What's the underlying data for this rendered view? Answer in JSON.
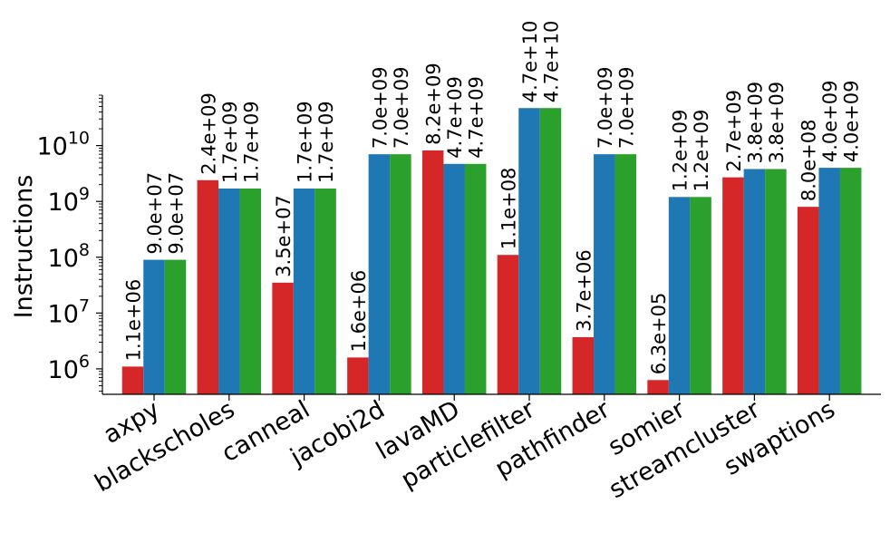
{
  "chart_data": {
    "type": "bar",
    "title": "",
    "xlabel": "",
    "ylabel": "Instructions",
    "yscale": "log",
    "ylim": [
      350000,
      80000000000
    ],
    "yticks": [
      {
        "value": 1000000,
        "base": "10",
        "exp": "6"
      },
      {
        "value": 10000000,
        "base": "10",
        "exp": "7"
      },
      {
        "value": 100000000,
        "base": "10",
        "exp": "8"
      },
      {
        "value": 1000000000,
        "base": "10",
        "exp": "9"
      },
      {
        "value": 10000000000,
        "base": "10",
        "exp": "10"
      }
    ],
    "grid": false,
    "legend": "none",
    "categories": [
      "axpy",
      "blackscholes",
      "canneal",
      "jacobi2d",
      "lavaMD",
      "particlefilter",
      "pathfinder",
      "somier",
      "streamcluster",
      "swaptions"
    ],
    "series": [
      {
        "color": "#d62728",
        "values": [
          1100000,
          2400000000,
          35000000,
          1600000,
          8200000000,
          110000000,
          3700000,
          630000,
          2700000000,
          800000000
        ],
        "labels": [
          "1.1e+06",
          "2.4e+09",
          "3.5e+07",
          "1.6e+06",
          "8.2e+09",
          "1.1e+08",
          "3.7e+06",
          "6.3e+05",
          "2.7e+09",
          "8.0e+08"
        ]
      },
      {
        "color": "#1f77b4",
        "values": [
          90000000,
          1700000000,
          1700000000,
          7000000000,
          4700000000,
          47000000000,
          7000000000,
          1200000000,
          3800000000,
          4000000000
        ],
        "labels": [
          "9.0e+07",
          "1.7e+09",
          "1.7e+09",
          "7.0e+09",
          "4.7e+09",
          "4.7e+10",
          "7.0e+09",
          "1.2e+09",
          "3.8e+09",
          "4.0e+09"
        ]
      },
      {
        "color": "#2ca02c",
        "values": [
          90000000,
          1700000000,
          1700000000,
          7000000000,
          4700000000,
          47000000000,
          7000000000,
          1200000000,
          3800000000,
          4000000000
        ],
        "labels": [
          "9.0e+07",
          "1.7e+09",
          "1.7e+09",
          "7.0e+09",
          "4.7e+09",
          "4.7e+10",
          "7.0e+09",
          "1.2e+09",
          "3.8e+09",
          "4.0e+09"
        ]
      }
    ]
  }
}
